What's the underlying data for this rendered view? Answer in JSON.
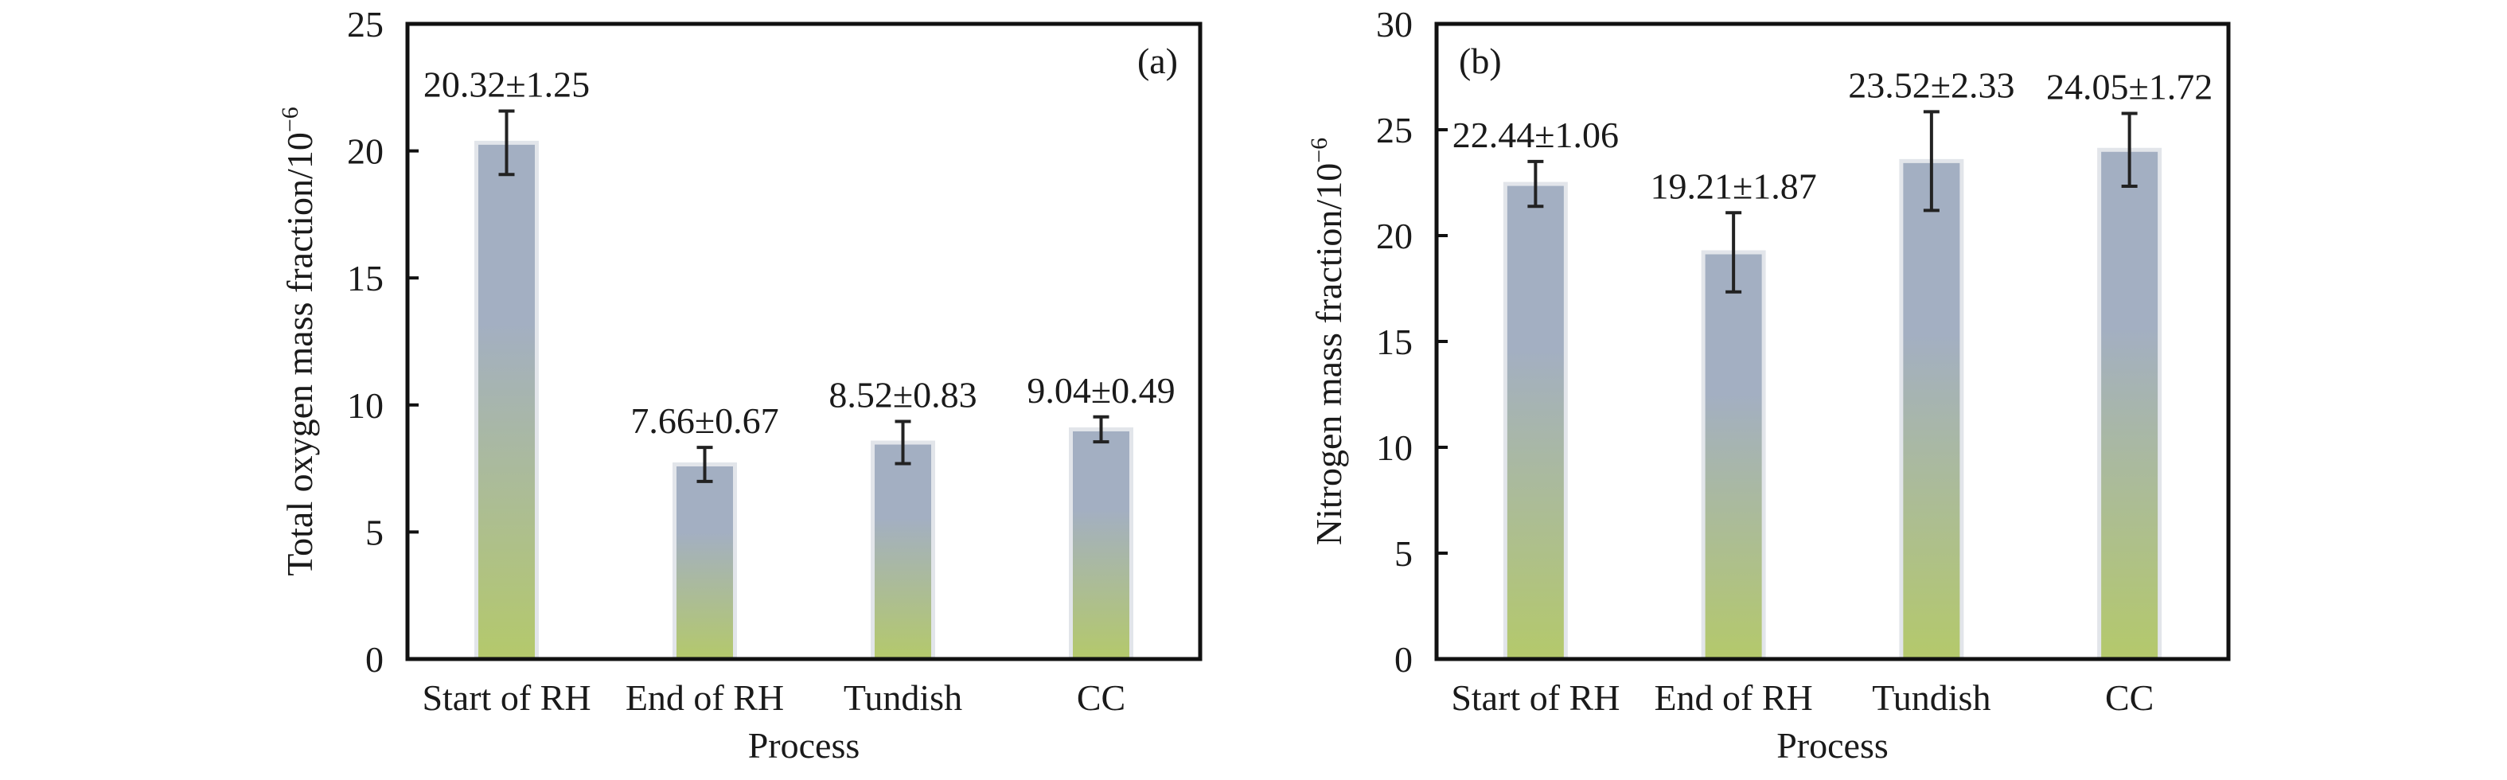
{
  "chart_data": [
    {
      "type": "bar",
      "panel_label": "(a)",
      "categories": [
        "Start of RH",
        "End of RH",
        "Tundish",
        "CC"
      ],
      "values": [
        20.32,
        7.66,
        8.52,
        9.04
      ],
      "errors": [
        1.25,
        0.67,
        0.83,
        0.49
      ],
      "data_labels": [
        "20.32±1.25",
        "7.66±0.67",
        "8.52±0.83",
        "9.04±0.49"
      ],
      "xlabel": "Process",
      "ylabel": "Total oxygen mass fraction/10",
      "ylabel_exponent": "−6",
      "ylim": [
        0,
        25
      ],
      "yticks": [
        0,
        5,
        10,
        15,
        20,
        25
      ],
      "grid": false,
      "bar_gradient": [
        "#a3afc2",
        "#b4c96b"
      ]
    },
    {
      "type": "bar",
      "panel_label": "(b)",
      "categories": [
        "Start of RH",
        "End of RH",
        "Tundish",
        "CC"
      ],
      "values": [
        22.44,
        19.21,
        23.52,
        24.05
      ],
      "errors": [
        1.06,
        1.87,
        2.33,
        1.72
      ],
      "data_labels": [
        "22.44±1.06",
        "19.21±1.87",
        "23.52±2.33",
        "24.05±1.72"
      ],
      "xlabel": "Process",
      "ylabel": "Nitrogen mass fraction/10",
      "ylabel_exponent": "−6",
      "ylim": [
        0,
        30
      ],
      "yticks": [
        0,
        5,
        10,
        15,
        20,
        25,
        30
      ],
      "grid": false,
      "bar_gradient": [
        "#a3afc2",
        "#b4c96b"
      ]
    }
  ]
}
